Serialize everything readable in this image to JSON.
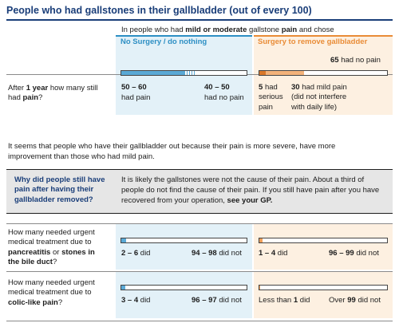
{
  "title": "People who had gallstones in their gallbladder (out of every 100)",
  "intro": {
    "pre": "In people who had ",
    "bold1": "mild or moderate",
    "mid": " gallstone ",
    "bold2": "pain",
    "post": " and chose"
  },
  "columns": {
    "no_surgery": "No Surgery / do nothing",
    "surgery": "Surgery to remove gallbladder"
  },
  "colors": {
    "title": "#1a3e79",
    "blue_accent": "#2d8fc4",
    "orange_accent": "#e98c37",
    "blue_fill": "#5aa9d6",
    "orange_fill": "#f0a05a",
    "blue_bg": "#e3f1f8",
    "orange_bg": "#fdf0e1"
  },
  "row1": {
    "q_pre": "After ",
    "q_bold1": "1 year",
    "q_mid": " how many still had ",
    "q_bold2": "pain",
    "q_post": "?",
    "no_surgery": {
      "left_num": "50 – 60",
      "left_txt": "had pain",
      "right_num": "40 – 50",
      "right_txt": "had no pain",
      "bar_fraction": 0.55
    },
    "surgery": {
      "top_num": "65",
      "top_txt": "had no pain",
      "a_num": "5",
      "a_txt1": "had",
      "a_txt2": "serious",
      "a_txt3": "pain",
      "b_num": "30",
      "b_txt1": "had mild pain",
      "b_txt2": "(did not interfere",
      "b_txt3": "with daily life)",
      "bar_serious": 0.05,
      "bar_mild": 0.3
    }
  },
  "summary": {
    "line1": "It seems that people who have their gallbladder out because their pain is more severe,  have more",
    "line2": "improvement than those who had mild pain."
  },
  "note": {
    "question": "Why did people still have pain after having their gallbladder removed?",
    "answer": "It is likely the gallstones were not the cause of their pain. About a third of people do not find the cause of their pain. If you still have pain after you have recovered from your operation, ",
    "answer_bold": "see your GP."
  },
  "row2": {
    "q_line1": "How many needed urgent",
    "q_line2": "medical treatment due to",
    "q_bold1": "pancreatitis",
    "q_mid": " or ",
    "q_bold2": "stones in",
    "q_bold3": "the bile duct",
    "q_post": "?",
    "no_surgery": {
      "left_num": "2 – 6",
      "left_txt": "did",
      "right_num": "94 – 98",
      "right_txt": "did not",
      "bar_fraction": 0.04
    },
    "surgery": {
      "left_num": "1 – 4",
      "left_txt": "did",
      "right_num": "96 – 99",
      "right_txt": "did not",
      "bar_fraction": 0.025
    }
  },
  "row3": {
    "q_line1": "How many needed urgent",
    "q_line2": "medical treatment due to",
    "q_bold1": "colic-like pain",
    "q_post": "?",
    "no_surgery": {
      "left_num": "3 – 4",
      "left_txt": "did",
      "right_num": "96 – 97",
      "right_txt": "did not",
      "bar_fraction": 0.035
    },
    "surgery": {
      "left_pre": "Less than ",
      "left_num": "1",
      "left_txt": "did",
      "right_pre": "Over ",
      "right_num": "99",
      "right_txt": "did not",
      "bar_fraction": 0.005
    }
  }
}
